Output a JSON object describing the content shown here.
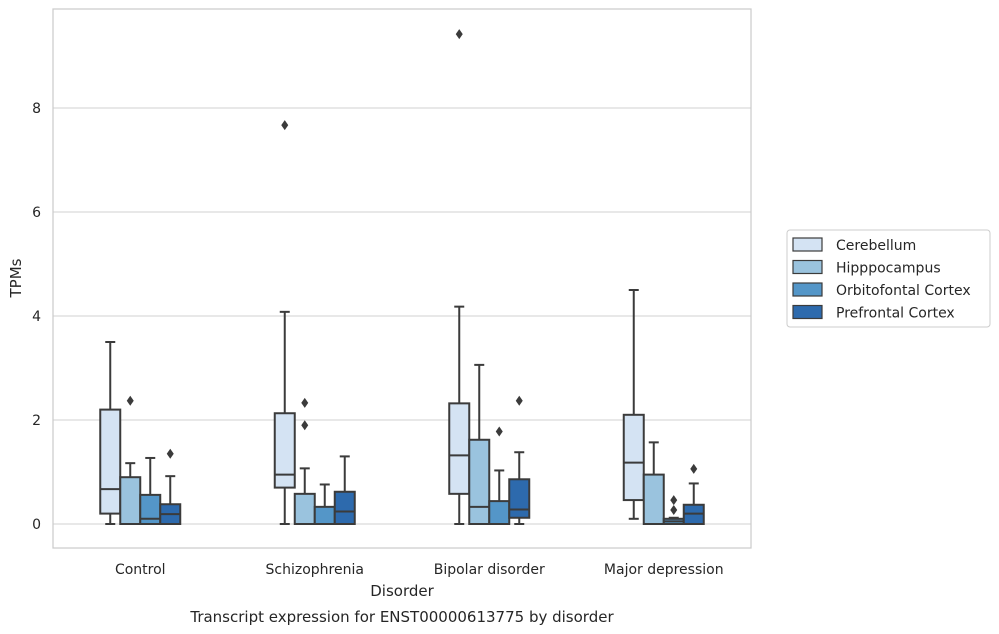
{
  "chart_data": {
    "type": "box",
    "title": "Transcript expression for ENST00000613775 by disorder",
    "xlabel": "Disorder",
    "ylabel": "TPMs",
    "ylim": [
      -0.45,
      9.85
    ],
    "yticks": [
      0,
      2,
      4,
      6,
      8
    ],
    "grid": true,
    "legend_position": "right",
    "categories": [
      "Control",
      "Schizophrenia",
      "Bipolar disorder",
      "Major depression"
    ],
    "series": [
      {
        "name": "Cerebellum",
        "color": "#d4e3f3",
        "boxes": [
          {
            "whisker_low": 0.0,
            "q1": 0.2,
            "median": 0.67,
            "q3": 2.2,
            "whisker_high": 3.5,
            "outliers": []
          },
          {
            "whisker_low": 0.0,
            "q1": 0.7,
            "median": 0.95,
            "q3": 2.13,
            "whisker_high": 4.08,
            "outliers": [
              7.67
            ]
          },
          {
            "whisker_low": 0.0,
            "q1": 0.58,
            "median": 1.32,
            "q3": 2.32,
            "whisker_high": 4.18,
            "outliers": [
              9.42
            ]
          },
          {
            "whisker_low": 0.1,
            "q1": 0.46,
            "median": 1.18,
            "q3": 2.1,
            "whisker_high": 4.5,
            "outliers": []
          }
        ]
      },
      {
        "name": "Hipppocampus",
        "color": "#9ac3de",
        "boxes": [
          {
            "whisker_low": 0.0,
            "q1": 0.0,
            "median": 0.0,
            "q3": 0.9,
            "whisker_high": 1.17,
            "outliers": [
              2.37
            ]
          },
          {
            "whisker_low": 0.0,
            "q1": 0.0,
            "median": 0.0,
            "q3": 0.58,
            "whisker_high": 1.07,
            "outliers": [
              1.9,
              2.33
            ]
          },
          {
            "whisker_low": 0.0,
            "q1": 0.0,
            "median": 0.33,
            "q3": 1.62,
            "whisker_high": 3.06,
            "outliers": []
          },
          {
            "whisker_low": 0.0,
            "q1": 0.0,
            "median": 0.0,
            "q3": 0.95,
            "whisker_high": 1.57,
            "outliers": []
          }
        ]
      },
      {
        "name": "Orbitofontal Cortex",
        "color": "#5496c8",
        "boxes": [
          {
            "whisker_low": 0.0,
            "q1": 0.0,
            "median": 0.1,
            "q3": 0.56,
            "whisker_high": 1.27,
            "outliers": []
          },
          {
            "whisker_low": 0.0,
            "q1": 0.0,
            "median": 0.0,
            "q3": 0.33,
            "whisker_high": 0.76,
            "outliers": []
          },
          {
            "whisker_low": 0.0,
            "q1": 0.0,
            "median": 0.0,
            "q3": 0.44,
            "whisker_high": 1.03,
            "outliers": [
              1.78
            ]
          },
          {
            "whisker_low": 0.0,
            "q1": 0.0,
            "median": 0.05,
            "q3": 0.1,
            "whisker_high": 0.12,
            "outliers": [
              0.27,
              0.46
            ]
          }
        ]
      },
      {
        "name": "Prefrontal Cortex",
        "color": "#2d6aad",
        "boxes": [
          {
            "whisker_low": 0.0,
            "q1": 0.0,
            "median": 0.19,
            "q3": 0.38,
            "whisker_high": 0.92,
            "outliers": [
              1.35
            ]
          },
          {
            "whisker_low": 0.0,
            "q1": 0.0,
            "median": 0.24,
            "q3": 0.62,
            "whisker_high": 1.3,
            "outliers": []
          },
          {
            "whisker_low": 0.0,
            "q1": 0.12,
            "median": 0.28,
            "q3": 0.86,
            "whisker_high": 1.38,
            "outliers": [
              2.37
            ]
          },
          {
            "whisker_low": 0.0,
            "q1": 0.0,
            "median": 0.2,
            "q3": 0.37,
            "whisker_high": 0.78,
            "outliers": [
              1.06
            ]
          }
        ]
      }
    ]
  }
}
